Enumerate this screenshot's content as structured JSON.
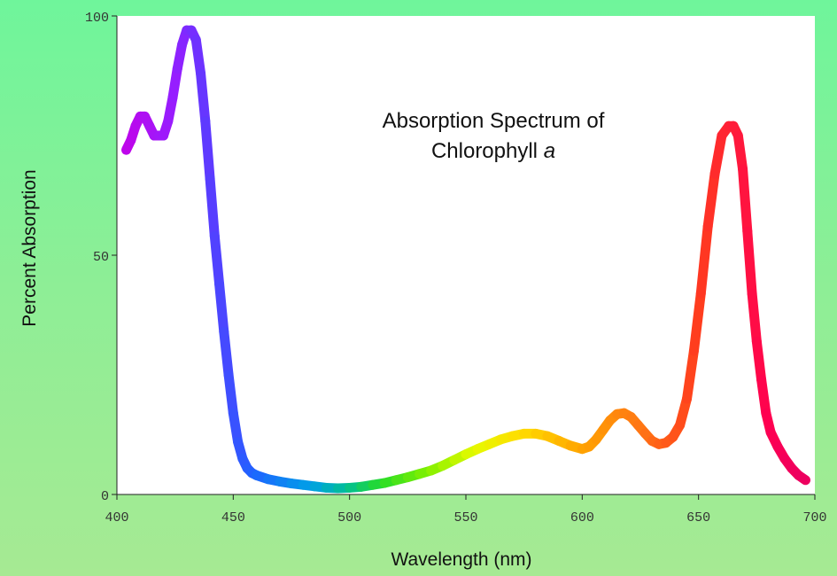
{
  "chart_data": {
    "type": "line",
    "title_line1": "Absorption Spectrum of",
    "title_line2_text": "Chlorophyll ",
    "title_line2_italic": "a",
    "xlabel": "Wavelength (nm)",
    "ylabel": "Percent Absorption",
    "xlim": [
      400,
      700
    ],
    "ylim": [
      0,
      100
    ],
    "xticks": [
      400,
      450,
      500,
      550,
      600,
      650,
      700
    ],
    "yticks": [
      0,
      50,
      100
    ],
    "grid": false,
    "series": [
      {
        "x": [
          404,
          406,
          408,
          410,
          412,
          414,
          416,
          418,
          420,
          422,
          424,
          426,
          428,
          430,
          432,
          434,
          436,
          438,
          440,
          442,
          444,
          446,
          448,
          450,
          452,
          454,
          456,
          458,
          460,
          465,
          470,
          475,
          480,
          485,
          490,
          495,
          500,
          505,
          510,
          515,
          520,
          525,
          530,
          535,
          540,
          545,
          550,
          555,
          560,
          565,
          570,
          575,
          580,
          585,
          590,
          595,
          600,
          603,
          606,
          609,
          612,
          615,
          618,
          621,
          624,
          627,
          630,
          633,
          636,
          639,
          642,
          645,
          648,
          651,
          654,
          657,
          660,
          663,
          665,
          667,
          669,
          671,
          673,
          675,
          677,
          679,
          681,
          684,
          687,
          690,
          693,
          696
        ],
        "y": [
          72,
          74,
          77,
          79,
          79,
          77,
          75,
          75,
          75,
          78,
          83,
          89,
          94,
          97,
          97,
          95,
          88,
          78,
          66,
          54,
          44,
          34,
          25,
          17,
          11,
          7.5,
          5.5,
          4.5,
          4,
          3.2,
          2.7,
          2.3,
          2,
          1.7,
          1.4,
          1.3,
          1.4,
          1.6,
          2,
          2.4,
          3,
          3.6,
          4.3,
          5,
          6,
          7.2,
          8.4,
          9.5,
          10.5,
          11.5,
          12.2,
          12.7,
          12.7,
          12.2,
          11.2,
          10.2,
          9.5,
          10,
          11.5,
          13.5,
          15.5,
          16.8,
          17,
          16.2,
          14.5,
          12.8,
          11.2,
          10.5,
          10.8,
          12,
          14.5,
          20,
          30,
          42,
          56,
          67,
          75,
          77,
          77,
          75,
          68,
          55,
          42,
          32,
          24,
          17,
          13,
          10,
          7.5,
          5.5,
          4,
          3
        ]
      }
    ]
  }
}
